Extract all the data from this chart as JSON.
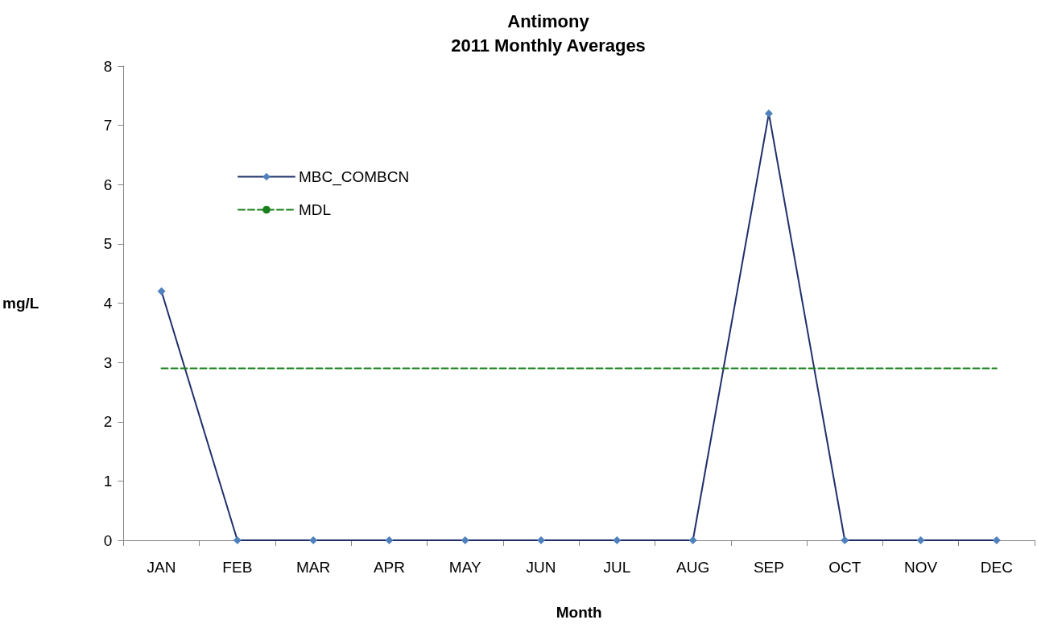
{
  "chart_data": {
    "type": "line",
    "title": "Antimony\n2011 Monthly Averages",
    "xlabel": "Month",
    "ylabel": "mg/L",
    "categories": [
      "JAN",
      "FEB",
      "MAR",
      "APR",
      "MAY",
      "JUN",
      "JUL",
      "AUG",
      "SEP",
      "OCT",
      "NOV",
      "DEC"
    ],
    "series": [
      {
        "name": "MBC_COMBCN",
        "color": "#1f2f6b",
        "marker": "diamond",
        "line_style": "solid",
        "values": [
          4.2,
          0,
          0,
          0,
          0,
          0,
          0,
          0,
          7.2,
          0,
          0,
          0
        ]
      },
      {
        "name": "MDL",
        "color": "#1a7f1a",
        "marker": "none",
        "line_style": "dashed",
        "values": [
          2.9,
          2.9,
          2.9,
          2.9,
          2.9,
          2.9,
          2.9,
          2.9,
          2.9,
          2.9,
          2.9,
          2.9
        ]
      }
    ],
    "ylim": [
      0,
      8
    ],
    "yticks": [
      0,
      1,
      2,
      3,
      4,
      5,
      6,
      7,
      8
    ],
    "grid": false,
    "legend": "top left"
  }
}
